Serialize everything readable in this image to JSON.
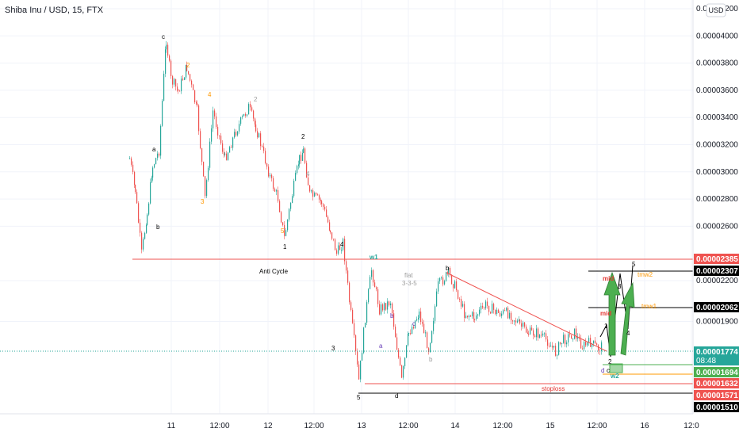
{
  "header": {
    "title": "Shiba Inu / USD, 15, FTX",
    "currency_button": "USD"
  },
  "chart_data": {
    "type": "candlestick",
    "title": "Shiba Inu / USD, 15, FTX",
    "ylim": [
      1.46e-05,
      4.22e-05
    ],
    "y_ticks": [
      "0.00004200",
      "0.00004000",
      "0.00003800",
      "0.00003600",
      "0.00003400",
      "0.00003200",
      "0.00003000",
      "0.00002800",
      "0.00002600",
      "0.00002200",
      "0.00001900"
    ],
    "x_ticks": [
      "11",
      "12:00",
      "12",
      "12:00",
      "13",
      "12:00",
      "14",
      "12:00",
      "15",
      "12:00",
      "16",
      "12:0"
    ],
    "price_tags": [
      {
        "label": "0.00002385",
        "bg": "#ef5350",
        "fg": "#ffffff"
      },
      {
        "label": "0.00002307",
        "bg": "#000000",
        "fg": "#ffffff"
      },
      {
        "label": "0.00002062",
        "bg": "#000000",
        "fg": "#ffffff"
      },
      {
        "label": "0.00001774",
        "bg": "#26a69a",
        "fg": "#ffffff",
        "sub": "08:48"
      },
      {
        "label": "0.00001694",
        "bg": "#4caf50",
        "fg": "#ffffff"
      },
      {
        "label": "0.00001632",
        "bg": "#ef5350",
        "fg": "#ffffff"
      },
      {
        "label": "0.00001571",
        "bg": "#ef5350",
        "fg": "#ffffff"
      },
      {
        "label": "0.00001510",
        "bg": "#000000",
        "fg": "#ffffff"
      }
    ],
    "wave_labels": [
      {
        "text": "c",
        "color": "#000000"
      },
      {
        "text": "a",
        "color": "#000000"
      },
      {
        "text": "b",
        "color": "#000000"
      },
      {
        "text": "2",
        "color": "#000000"
      },
      {
        "text": "1",
        "color": "#000000"
      },
      {
        "text": "4",
        "color": "#000000"
      },
      {
        "text": "3",
        "color": "#000000"
      },
      {
        "text": "5",
        "color": "#000000"
      },
      {
        "text": "b",
        "color": "#000000"
      },
      {
        "text": "d",
        "color": "#000000"
      },
      {
        "text": "w1",
        "color": "#26a69a"
      },
      {
        "text": "w2",
        "color": "#26a69a"
      },
      {
        "text": "2",
        "color": "#ff9800"
      },
      {
        "text": "4",
        "color": "#ff9800"
      },
      {
        "text": "3",
        "color": "#ff9800"
      },
      {
        "text": "5",
        "color": "#ff9800"
      },
      {
        "text": "2",
        "color": "#9e9e9e"
      },
      {
        "text": "4",
        "color": "#9e9e9e"
      },
      {
        "text": "b",
        "color": "#9e9e9e"
      },
      {
        "text": "a",
        "color": "#673ab7"
      },
      {
        "text": "b",
        "color": "#673ab7"
      },
      {
        "text": "c",
        "color": "#673ab7"
      },
      {
        "text": "d",
        "color": "#673ab7"
      },
      {
        "text": "1",
        "color": "#000000"
      },
      {
        "text": "2",
        "color": "#000000"
      },
      {
        "text": "3",
        "color": "#000000"
      },
      {
        "text": "4",
        "color": "#000000"
      },
      {
        "text": "5",
        "color": "#000000"
      },
      {
        "text": "c",
        "color": "#000000"
      }
    ],
    "annotations": [
      {
        "text": "Anti Cycle",
        "color": "#000000"
      },
      {
        "text": "flat",
        "color": "#9e9e9e"
      },
      {
        "text": "3-3-5",
        "color": "#9e9e9e"
      },
      {
        "text": "mid",
        "color": "#e53935"
      },
      {
        "text": "mid",
        "color": "#e53935"
      },
      {
        "text": "tmw2",
        "color": "#ff9800"
      },
      {
        "text": "tmw1",
        "color": "#ff9800"
      },
      {
        "text": "stoploss",
        "color": "#e53935"
      }
    ],
    "colors": {
      "up": "#26a69a",
      "down": "#ef5350",
      "support": "#ef5350",
      "target": "#000000",
      "arrow": "#4caf50"
    }
  }
}
